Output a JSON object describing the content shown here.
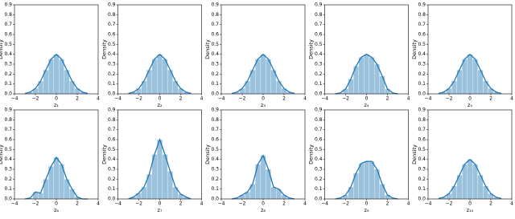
{
  "chart_data": [
    {
      "type": "histogram-kde",
      "xlabel": "z₁",
      "ylabel": "Density",
      "color": "#1f77b4",
      "x": [
        -3,
        -2.5,
        -2,
        -1.5,
        -1,
        -0.5,
        0,
        0.5,
        1,
        1.5,
        2,
        2.5,
        3
      ],
      "values": [
        0.004,
        0.018,
        0.054,
        0.13,
        0.242,
        0.352,
        0.399,
        0.352,
        0.242,
        0.13,
        0.054,
        0.018,
        0.004
      ],
      "xlim": [
        -4,
        4
      ],
      "ylim": [
        0,
        0.9
      ],
      "xticks": [
        {
          "value": -4,
          "label": "−4"
        },
        {
          "value": -2,
          "label": "−2"
        },
        0,
        2,
        4
      ],
      "yticks": [
        {
          "value": 0,
          "label": "0.0"
        },
        0.1,
        0.2,
        0.3,
        0.4,
        0.5,
        0.6,
        0.7,
        0.8,
        0.9
      ]
    },
    {
      "type": "histogram-kde",
      "xlabel": "z₂",
      "ylabel": "Density",
      "color": "#1f77b4",
      "x": [
        -3,
        -2.5,
        -2,
        -1.5,
        -1,
        -0.5,
        0,
        0.5,
        1,
        1.5,
        2,
        2.5,
        3
      ],
      "values": [
        0.004,
        0.018,
        0.054,
        0.13,
        0.242,
        0.352,
        0.399,
        0.352,
        0.242,
        0.13,
        0.054,
        0.018,
        0.004
      ],
      "xlim": [
        -4,
        4
      ],
      "ylim": [
        0,
        0.9
      ],
      "xticks": [
        {
          "value": -4,
          "label": "−4"
        },
        {
          "value": -2,
          "label": "−2"
        },
        0,
        2,
        4
      ],
      "yticks": [
        {
          "value": 0,
          "label": "0.0"
        },
        0.1,
        0.2,
        0.3,
        0.4,
        0.5,
        0.6,
        0.7,
        0.8,
        0.9
      ]
    },
    {
      "type": "histogram-kde",
      "xlabel": "z₃",
      "ylabel": "Density",
      "color": "#1f77b4",
      "x": [
        -3,
        -2.5,
        -2,
        -1.5,
        -1,
        -0.5,
        0,
        0.5,
        1,
        1.5,
        2,
        2.5,
        3
      ],
      "values": [
        0.004,
        0.018,
        0.054,
        0.13,
        0.242,
        0.352,
        0.399,
        0.352,
        0.242,
        0.13,
        0.054,
        0.018,
        0.004
      ],
      "xlim": [
        -4,
        4
      ],
      "ylim": [
        0,
        0.9
      ],
      "xticks": [
        {
          "value": -4,
          "label": "−4"
        },
        {
          "value": -2,
          "label": "−2"
        },
        0,
        2,
        4
      ],
      "yticks": [
        {
          "value": 0,
          "label": "0.0"
        },
        0.1,
        0.2,
        0.3,
        0.4,
        0.5,
        0.6,
        0.7,
        0.8,
        0.9
      ]
    },
    {
      "type": "histogram-kde",
      "xlabel": "z₄",
      "ylabel": "Density",
      "color": "#1f77b4",
      "x": [
        -3,
        -2.5,
        -2,
        -1.5,
        -1,
        -0.5,
        0,
        0.5,
        1,
        1.5,
        2,
        2.5,
        3
      ],
      "values": [
        0,
        0.01,
        0.05,
        0.15,
        0.28,
        0.37,
        0.4,
        0.37,
        0.3,
        0.18,
        0.05,
        0.01,
        0
      ],
      "xlim": [
        -4,
        4
      ],
      "ylim": [
        0,
        0.9
      ],
      "xticks": [
        {
          "value": -4,
          "label": "−4"
        },
        {
          "value": -2,
          "label": "−2"
        },
        0,
        2,
        4
      ],
      "yticks": [
        {
          "value": 0,
          "label": "0.0"
        },
        0.1,
        0.2,
        0.3,
        0.4,
        0.5,
        0.6,
        0.7,
        0.8,
        0.9
      ]
    },
    {
      "type": "histogram-kde",
      "xlabel": "z₅",
      "ylabel": "Density",
      "color": "#1f77b4",
      "x": [
        -3,
        -2.5,
        -2,
        -1.5,
        -1,
        -0.5,
        0,
        0.5,
        1,
        1.5,
        2,
        2.5,
        3
      ],
      "values": [
        0.004,
        0.018,
        0.054,
        0.13,
        0.242,
        0.352,
        0.399,
        0.352,
        0.242,
        0.13,
        0.054,
        0.018,
        0.004
      ],
      "xlim": [
        -4,
        4
      ],
      "ylim": [
        0,
        0.9
      ],
      "xticks": [
        {
          "value": -4,
          "label": "−4"
        },
        {
          "value": -2,
          "label": "−2"
        },
        0,
        2,
        4
      ],
      "yticks": [
        {
          "value": 0,
          "label": "0.0"
        },
        0.1,
        0.2,
        0.3,
        0.4,
        0.5,
        0.6,
        0.7,
        0.8,
        0.9
      ]
    },
    {
      "type": "histogram-kde",
      "xlabel": "z₆",
      "ylabel": "Density",
      "color": "#1f77b4",
      "x": [
        -3,
        -2.5,
        -2,
        -1.5,
        -1,
        -0.5,
        0,
        0.5,
        1,
        1.5,
        2,
        2.5,
        3
      ],
      "values": [
        0,
        0.01,
        0.07,
        0.06,
        0.2,
        0.33,
        0.42,
        0.35,
        0.2,
        0.1,
        0.02,
        0,
        0
      ],
      "xlim": [
        -4,
        4
      ],
      "ylim": [
        0,
        0.9
      ],
      "xticks": [
        {
          "value": -4,
          "label": "−4"
        },
        {
          "value": -2,
          "label": "−2"
        },
        0,
        2,
        4
      ],
      "yticks": [
        {
          "value": 0,
          "label": "0.0"
        },
        0.1,
        0.2,
        0.3,
        0.4,
        0.5,
        0.6,
        0.7,
        0.8,
        0.9
      ]
    },
    {
      "type": "histogram-kde",
      "xlabel": "z₇",
      "ylabel": "Density",
      "color": "#1f77b4",
      "x": [
        -3,
        -2.5,
        -2,
        -1.5,
        -1,
        -0.5,
        0,
        0.5,
        1,
        1.5,
        2,
        2.5,
        3
      ],
      "values": [
        0,
        0.02,
        0.06,
        0.12,
        0.25,
        0.45,
        0.6,
        0.45,
        0.28,
        0.12,
        0.05,
        0.02,
        0
      ],
      "xlim": [
        -4,
        4
      ],
      "ylim": [
        0,
        0.9
      ],
      "xticks": [
        {
          "value": -4,
          "label": "−4"
        },
        {
          "value": -2,
          "label": "−2"
        },
        0,
        2,
        4
      ],
      "yticks": [
        {
          "value": 0,
          "label": "0.0"
        },
        0.1,
        0.2,
        0.3,
        0.4,
        0.5,
        0.6,
        0.7,
        0.8,
        0.9
      ]
    },
    {
      "type": "histogram-kde",
      "xlabel": "z₈",
      "ylabel": "Density",
      "color": "#1f77b4",
      "x": [
        -3,
        -2.5,
        -2,
        -1.5,
        -1,
        -0.5,
        0,
        0.5,
        1,
        1.5,
        2,
        2.5,
        3
      ],
      "values": [
        0,
        0.01,
        0.04,
        0.07,
        0.15,
        0.35,
        0.44,
        0.3,
        0.12,
        0.1,
        0.04,
        0.01,
        0
      ],
      "xlim": [
        -4,
        4
      ],
      "ylim": [
        0,
        0.9
      ],
      "xticks": [
        {
          "value": -4,
          "label": "−4"
        },
        {
          "value": -2,
          "label": "−2"
        },
        0,
        2,
        4
      ],
      "yticks": [
        {
          "value": 0,
          "label": "0.0"
        },
        0.1,
        0.2,
        0.3,
        0.4,
        0.5,
        0.6,
        0.7,
        0.8,
        0.9
      ]
    },
    {
      "type": "histogram-kde",
      "xlabel": "z₉",
      "ylabel": "Density",
      "color": "#1f77b4",
      "x": [
        -3,
        -2.5,
        -2,
        -1.5,
        -1,
        -0.5,
        0,
        0.5,
        1,
        1.5,
        2,
        2.5,
        3
      ],
      "values": [
        0,
        0.01,
        0.04,
        0.12,
        0.26,
        0.36,
        0.38,
        0.38,
        0.3,
        0.15,
        0.04,
        0.01,
        0
      ],
      "xlim": [
        -4,
        4
      ],
      "ylim": [
        0,
        0.9
      ],
      "xticks": [
        {
          "value": -4,
          "label": "−4"
        },
        {
          "value": -2,
          "label": "−2"
        },
        0,
        2,
        4
      ],
      "yticks": [
        {
          "value": 0,
          "label": "0.0"
        },
        0.1,
        0.2,
        0.3,
        0.4,
        0.5,
        0.6,
        0.7,
        0.8,
        0.9
      ]
    },
    {
      "type": "histogram-kde",
      "xlabel": "z₁₀",
      "ylabel": "Density",
      "color": "#1f77b4",
      "x": [
        -3,
        -2.5,
        -2,
        -1.5,
        -1,
        -0.5,
        0,
        0.5,
        1,
        1.5,
        2,
        2.5,
        3
      ],
      "values": [
        0.004,
        0.018,
        0.054,
        0.13,
        0.242,
        0.352,
        0.399,
        0.352,
        0.242,
        0.13,
        0.054,
        0.018,
        0.004
      ],
      "xlim": [
        -4,
        4
      ],
      "ylim": [
        0,
        0.9
      ],
      "xticks": [
        {
          "value": -4,
          "label": "−4"
        },
        {
          "value": -2,
          "label": "−2"
        },
        0,
        2,
        4
      ],
      "yticks": [
        {
          "value": 0,
          "label": "0.0"
        },
        0.1,
        0.2,
        0.3,
        0.4,
        0.5,
        0.6,
        0.7,
        0.8,
        0.9
      ]
    }
  ]
}
